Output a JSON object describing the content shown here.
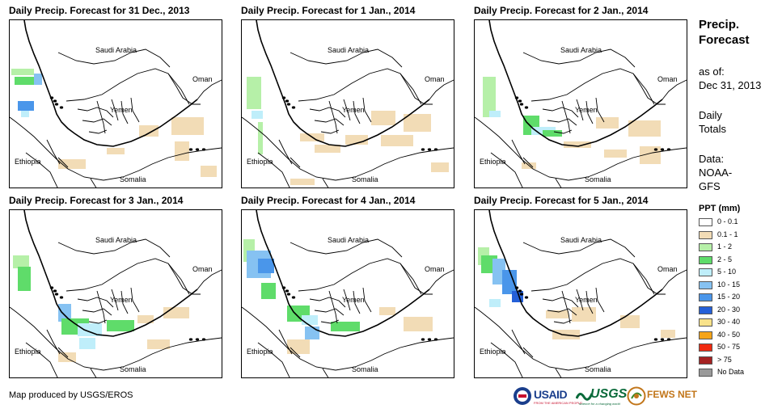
{
  "panels": [
    {
      "title": "Daily Precip. Forecast for 31 Dec., 2013"
    },
    {
      "title": "Daily Precip. Forecast for 1 Jan., 2014"
    },
    {
      "title": "Daily Precip. Forecast for 2 Jan., 2014"
    },
    {
      "title": "Daily Precip. Forecast for 3 Jan., 2014"
    },
    {
      "title": "Daily Precip. Forecast for 4 Jan., 2014"
    },
    {
      "title": "Daily Precip. Forecast for 5 Jan., 2014"
    }
  ],
  "map_labels": {
    "saudi": "Saudi Arabia",
    "oman": "Oman",
    "yemen": "Yemen",
    "ethiopia": "Ethiopia",
    "somalia": "Somalia"
  },
  "sidebar": {
    "heading_line1": "Precip.",
    "heading_line2": "Forecast",
    "asof_line1": "as of:",
    "asof_line2": "Dec 31, 2013",
    "daily_line1": "Daily",
    "daily_line2": "Totals",
    "data_line1": "Data:",
    "data_line2": "NOAA-",
    "data_line3": "GFS"
  },
  "legend": {
    "title": "PPT (mm)",
    "items": [
      {
        "label": "0 - 0.1",
        "color": "#ffffff"
      },
      {
        "label": "0.1 - 1",
        "color": "#f2dcb6"
      },
      {
        "label": "1 - 2",
        "color": "#b6f0a8"
      },
      {
        "label": "2 - 5",
        "color": "#5fdc6a"
      },
      {
        "label": "5 - 10",
        "color": "#bfeefa"
      },
      {
        "label": "10 - 15",
        "color": "#86c2f2"
      },
      {
        "label": "15 - 20",
        "color": "#4a96ea"
      },
      {
        "label": "20 - 30",
        "color": "#2560d8"
      },
      {
        "label": "30 - 40",
        "color": "#f8e28a"
      },
      {
        "label": "40 - 50",
        "color": "#f5a418"
      },
      {
        "label": "50 - 75",
        "color": "#f02a10"
      },
      {
        "label": "> 75",
        "color": "#a52222"
      },
      {
        "label": "No Data",
        "color": "#9a9a9a"
      }
    ]
  },
  "footer": {
    "credit": "Map produced by USGS/EROS",
    "usaid": "USAID",
    "usaid_tag": "FROM THE AMERICAN PEOPLE",
    "usgs": "USGS",
    "usgs_tag": "science for a changing world",
    "fews": "FEWS NET"
  }
}
